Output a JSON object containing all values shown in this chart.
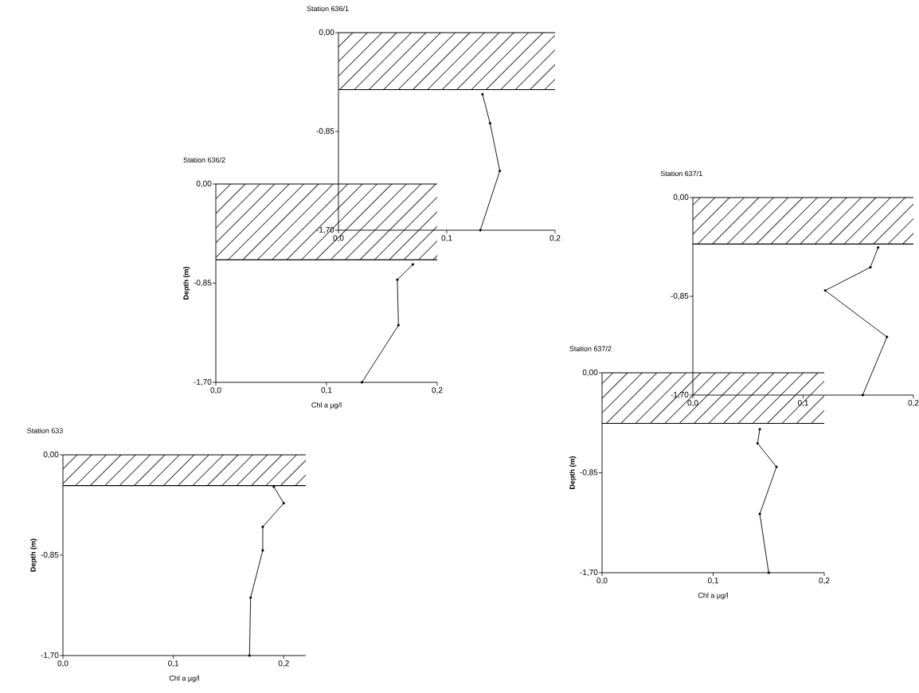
{
  "chart_data": [
    {
      "type": "line",
      "title": "Station 636/1",
      "x": [
        0.133,
        0.14,
        0.149,
        0.131
      ],
      "values": [
        -0.53,
        -0.78,
        -1.19,
        -1.7
      ],
      "color": "#000000",
      "marker": "circle",
      "xlim": [
        0,
        0.2
      ],
      "ylim": [
        -1.7,
        0
      ],
      "xticks": [
        {
          "value": 0,
          "label": "0,0"
        },
        {
          "value": 0.1,
          "label": "0,1"
        },
        {
          "value": 0.2,
          "label": "0,2"
        }
      ],
      "yticks": [
        {
          "value": 0,
          "label": "0,00"
        },
        {
          "value": -0.85,
          "label": "-0,85"
        },
        {
          "value": -1.7,
          "label": "-1,70"
        }
      ],
      "bands": [
        {
          "axis": "y",
          "from": 0,
          "to": -0.49,
          "color": "#000000"
        }
      ],
      "ref_lines": [
        {
          "axis": "y",
          "value": -0.49,
          "color": "#000000"
        }
      ]
    },
    {
      "type": "line",
      "title": "Station 636/2",
      "xlabel": "Chl a µg/l",
      "ylabel": "Depth  (m)",
      "x": [
        0.178,
        0.164,
        0.165,
        0.132
      ],
      "values": [
        -0.69,
        -0.82,
        -1.21,
        -1.7
      ],
      "color": "#000000",
      "marker": "circle",
      "xlim": [
        0,
        0.2
      ],
      "ylim": [
        -1.7,
        0
      ],
      "xticks": [
        {
          "value": 0,
          "label": "0,0"
        },
        {
          "value": 0.1,
          "label": "0,1"
        },
        {
          "value": 0.2,
          "label": "0,2"
        }
      ],
      "yticks": [
        {
          "value": 0,
          "label": "0,00"
        },
        {
          "value": -0.85,
          "label": "-0,85"
        },
        {
          "value": -1.7,
          "label": "-1,70"
        }
      ],
      "bands": [
        {
          "axis": "y",
          "from": 0,
          "to": -0.65,
          "color": "#000000"
        }
      ],
      "ref_lines": [
        {
          "axis": "y",
          "value": -0.65,
          "color": "#000000"
        }
      ]
    },
    {
      "type": "line",
      "title": "Station 637/1",
      "x": [
        0.168,
        0.161,
        0.12,
        0.176,
        0.154
      ],
      "values": [
        -0.43,
        -0.6,
        -0.8,
        -1.2,
        -1.7
      ],
      "color": "#000000",
      "marker": "circle",
      "xlim": [
        0,
        0.2
      ],
      "ylim": [
        -1.7,
        0
      ],
      "xticks": [
        {
          "value": 0,
          "label": "0,0"
        },
        {
          "value": 0.1,
          "label": "0,1"
        },
        {
          "value": 0.2,
          "label": "0,2"
        }
      ],
      "yticks": [
        {
          "value": 0,
          "label": "0,00"
        },
        {
          "value": -0.85,
          "label": "-0,85"
        },
        {
          "value": -1.7,
          "label": "-1,70"
        }
      ],
      "bands": [
        {
          "axis": "y",
          "from": 0,
          "to": -0.4,
          "color": "#000000"
        }
      ],
      "ref_lines": [
        {
          "axis": "y",
          "value": -0.4,
          "color": "#000000"
        }
      ]
    },
    {
      "type": "line",
      "title": "Station 637/2",
      "xlabel": "Chl a µg/l",
      "ylabel": "Depth  (m)",
      "x": [
        0.142,
        0.14,
        0.157,
        0.142,
        0.15
      ],
      "values": [
        -0.48,
        -0.6,
        -0.8,
        -1.2,
        -1.7
      ],
      "color": "#000000",
      "marker": "circle",
      "xlim": [
        0,
        0.2
      ],
      "ylim": [
        -1.7,
        0
      ],
      "xticks": [
        {
          "value": 0,
          "label": "0,0"
        },
        {
          "value": 0.1,
          "label": "0,1"
        },
        {
          "value": 0.2,
          "label": "0,2"
        }
      ],
      "yticks": [
        {
          "value": 0,
          "label": "0,00"
        },
        {
          "value": -0.85,
          "label": "-0,85"
        },
        {
          "value": -1.7,
          "label": "-1,70"
        }
      ],
      "bands": [
        {
          "axis": "y",
          "from": 0,
          "to": -0.43,
          "color": "#000000"
        }
      ],
      "ref_lines": [
        {
          "axis": "y",
          "value": -0.43,
          "color": "#000000"
        }
      ]
    },
    {
      "type": "line",
      "title": "Station 633",
      "xlabel": "Chl a µg/l",
      "ylabel": "Depth  (m)",
      "x": [
        0.191,
        0.2,
        0.181,
        0.181,
        0.17,
        0.169
      ],
      "values": [
        -0.27,
        -0.41,
        -0.61,
        -0.81,
        -1.21,
        -1.7
      ],
      "color": "#000000",
      "marker": "circle",
      "xlim": [
        0,
        0.22
      ],
      "ylim": [
        -1.7,
        0
      ],
      "xticks": [
        {
          "value": 0,
          "label": "0,0"
        },
        {
          "value": 0.1,
          "label": "0,1"
        },
        {
          "value": 0.2,
          "label": "0,2"
        }
      ],
      "yticks": [
        {
          "value": 0,
          "label": "0,00"
        },
        {
          "value": -0.85,
          "label": "-0,85"
        },
        {
          "value": -1.7,
          "label": "-1,70"
        }
      ],
      "bands": [
        {
          "axis": "y",
          "from": 0,
          "to": -0.26,
          "color": "#000000"
        }
      ],
      "ref_lines": [
        {
          "axis": "y",
          "value": -0.26,
          "color": "#000000"
        }
      ]
    }
  ]
}
